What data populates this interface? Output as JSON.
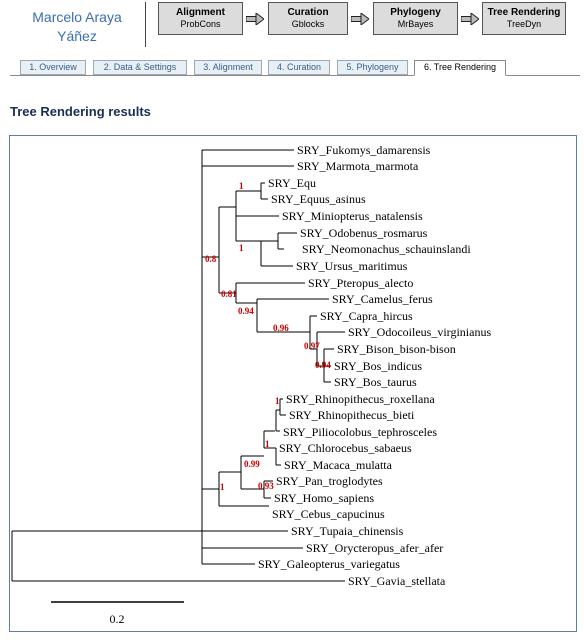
{
  "header": {
    "user_name_line1": "Marcelo Araya",
    "user_name_line2": "Yáñez",
    "steps": [
      {
        "title": "Alignment",
        "sub": "ProbCons"
      },
      {
        "title": "Curation",
        "sub": "Gblocks"
      },
      {
        "title": "Phylogeny",
        "sub": "MrBayes"
      },
      {
        "title": "Tree Rendering",
        "sub": "TreeDyn"
      }
    ]
  },
  "tabs": [
    {
      "label": "1. Overview"
    },
    {
      "label": "2. Data & Settings"
    },
    {
      "label": "3. Alignment"
    },
    {
      "label": "4. Curation"
    },
    {
      "label": "5. Phylogeny"
    },
    {
      "label": "6. Tree Rendering"
    }
  ],
  "active_tab": "6. Tree Rendering",
  "section_title": "Tree Rendering results",
  "colors": {
    "support_value": "#cc0000",
    "link_blue": "#3a6fb0",
    "frame_border": "#5c7fa8"
  },
  "tree": {
    "taxa": [
      "SRY_Fukomys_damarensis",
      "SRY_Marmota_marmota",
      "SRY_Equ",
      "SRY_Equus_asinus",
      "SRY_Miniopterus_natalensis",
      "SRY_Odobenus_rosmarus",
      "SRY_Neomonachus_schauinslandi",
      "SRY_Ursus_maritimus",
      "SRY_Pteropus_alecto",
      "SRY_Camelus_ferus",
      "SRY_Capra_hircus",
      "SRY_Odocoileus_virginianus",
      "SRY_Bison_bison-bison",
      "SRY_Bos_indicus",
      "SRY_Bos_taurus",
      "SRY_Rhinopithecus_roxellana",
      "SRY_Rhinopithecus_bieti",
      "SRY_Piliocolobus_tephrosceles",
      "SRY_Chlorocebus_sabaeus",
      "SRY_Macaca_mulatta",
      "SRY_Pan_troglodytes",
      "SRY_Homo_sapiens",
      "SRY_Cebus_capucinus",
      "SRY_Tupaia_chinensis",
      "SRY_Orycteropus_afer_afer",
      "SRY_Galeopterus_variegatus",
      "SRY_Gavia_stellata"
    ],
    "supports": [
      "1",
      "1",
      "0.8",
      "0.81",
      "0.94",
      "0.96",
      "0.97",
      "0.94",
      "1",
      "1",
      "0.99",
      "0.93",
      "1"
    ],
    "scale_label": "0.2"
  }
}
